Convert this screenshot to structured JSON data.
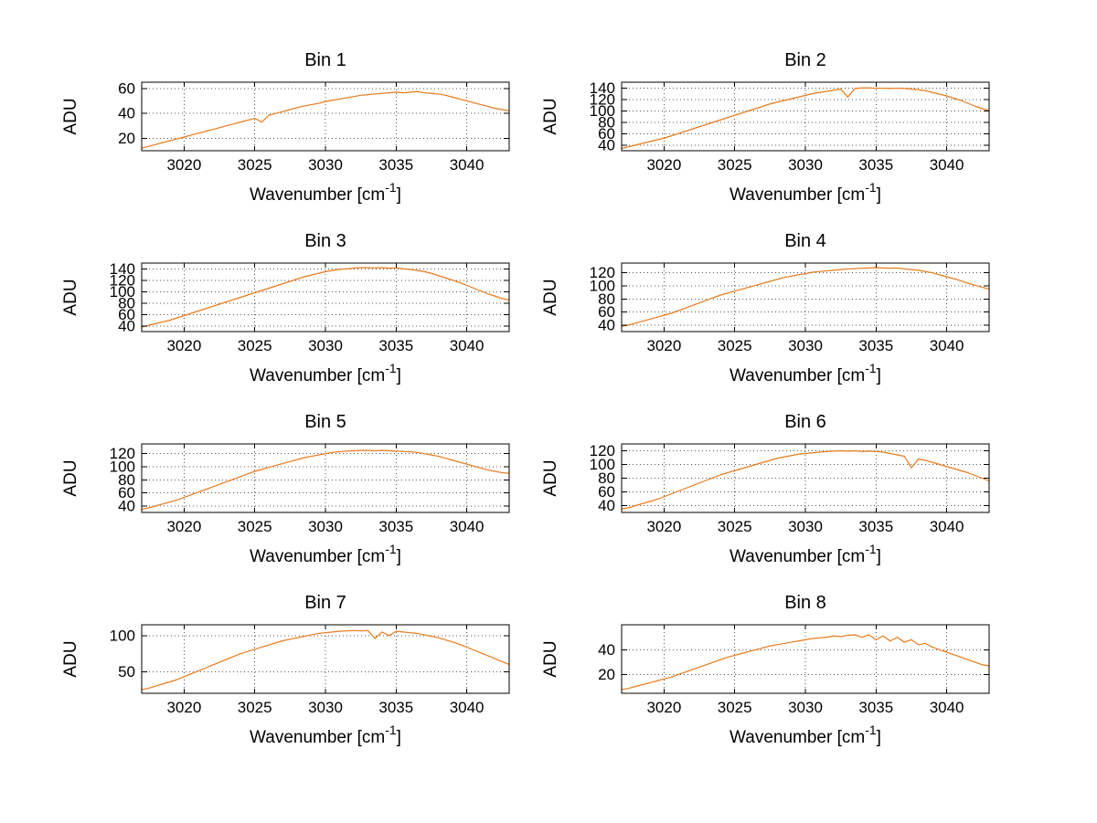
{
  "figure": {
    "background": "#ffffff",
    "grid_color": "#555555",
    "axis_color": "#000000",
    "rows": 4,
    "cols": 2
  },
  "labels": {
    "ylabel": "ADU",
    "xlabel_base": "Wavenumber [cm",
    "xlabel_sup": "-1",
    "xlabel_end": "]"
  },
  "chart_data": [
    {
      "type": "line",
      "title": "Bin 1",
      "xlabel": "Wavenumber [cm^-1]",
      "ylabel": "ADU",
      "line_color": "#e87a1a",
      "grid": true,
      "legend": "none",
      "xlim": [
        3017,
        3043
      ],
      "ylim": [
        10,
        65
      ],
      "x_ticks": [
        3020,
        3025,
        3030,
        3035,
        3040
      ],
      "y_ticks": [
        20,
        40,
        60
      ],
      "x_start": 3017,
      "x_step": 0.5,
      "values": [
        12,
        13.5,
        15,
        16.5,
        18,
        19.5,
        21,
        22.5,
        24,
        25.5,
        27,
        28.5,
        30,
        31.5,
        33,
        34.5,
        36,
        33,
        38.5,
        40,
        41.5,
        43,
        44.5,
        46,
        47,
        48,
        49.5,
        50.5,
        51.5,
        52.5,
        53.5,
        54.5,
        55,
        55.5,
        56,
        56.5,
        57,
        56.5,
        57,
        57.5,
        56.5,
        56,
        55.5,
        54.5,
        53,
        51.5,
        50,
        48.5,
        47,
        45.5,
        44,
        43,
        42
      ]
    },
    {
      "type": "line",
      "title": "Bin 2",
      "xlabel": "Wavenumber [cm^-1]",
      "ylabel": "ADU",
      "line_color": "#e87a1a",
      "grid": true,
      "legend": "none",
      "xlim": [
        3017,
        3043
      ],
      "ylim": [
        30,
        150
      ],
      "x_ticks": [
        3020,
        3025,
        3030,
        3035,
        3040
      ],
      "y_ticks": [
        40,
        60,
        80,
        100,
        120,
        140
      ],
      "x_start": 3017,
      "x_step": 0.5,
      "values": [
        34,
        37,
        40,
        43,
        46,
        49,
        52,
        56,
        60,
        64,
        68,
        72,
        76,
        80,
        84,
        88,
        92,
        96,
        100,
        104,
        108,
        112,
        115,
        118,
        121,
        124,
        127,
        130,
        132,
        134,
        136,
        138,
        124,
        139,
        140,
        140,
        139.5,
        139.5,
        139,
        139.5,
        139,
        138,
        137,
        135,
        132,
        129,
        126,
        122,
        118,
        113,
        108,
        104,
        100
      ]
    },
    {
      "type": "line",
      "title": "Bin 3",
      "xlabel": "Wavenumber [cm^-1]",
      "ylabel": "ADU",
      "line_color": "#e87a1a",
      "grid": true,
      "legend": "none",
      "xlim": [
        3017,
        3043
      ],
      "ylim": [
        30,
        150
      ],
      "x_ticks": [
        3020,
        3025,
        3030,
        3035,
        3040
      ],
      "y_ticks": [
        40,
        60,
        80,
        100,
        120,
        140
      ],
      "x_start": 3017,
      "x_step": 0.5,
      "values": [
        38,
        41,
        44,
        47,
        50,
        54,
        58,
        62,
        66,
        70,
        74,
        78,
        82,
        86,
        90,
        94,
        98,
        102,
        106,
        110,
        114,
        118,
        122,
        126,
        129,
        132,
        135,
        137,
        139,
        140,
        141,
        142,
        142,
        141.5,
        142,
        141,
        141.5,
        140,
        139,
        137,
        135,
        132,
        128,
        124,
        120,
        116,
        111,
        106,
        101,
        96,
        92,
        88,
        85
      ]
    },
    {
      "type": "line",
      "title": "Bin 4",
      "xlabel": "Wavenumber [cm^-1]",
      "ylabel": "ADU",
      "line_color": "#e87a1a",
      "grid": true,
      "legend": "none",
      "xlim": [
        3017,
        3043
      ],
      "ylim": [
        30,
        135
      ],
      "x_ticks": [
        3020,
        3025,
        3030,
        3035,
        3040
      ],
      "y_ticks": [
        40,
        60,
        80,
        100,
        120
      ],
      "x_start": 3017,
      "x_step": 0.5,
      "values": [
        38,
        40,
        43,
        46,
        49,
        52,
        55,
        58,
        62,
        66,
        70,
        74,
        78,
        82,
        86,
        89,
        92,
        95,
        98,
        101,
        104,
        107,
        110,
        113,
        115,
        117,
        119,
        121,
        122,
        123,
        124,
        125,
        126,
        126.5,
        127,
        127.5,
        128,
        127.5,
        127,
        127.5,
        126,
        125,
        124,
        122,
        120,
        117,
        114,
        111,
        108,
        104,
        101,
        98,
        95
      ]
    },
    {
      "type": "line",
      "title": "Bin 5",
      "xlabel": "Wavenumber [cm^-1]",
      "ylabel": "ADU",
      "line_color": "#e87a1a",
      "grid": true,
      "legend": "none",
      "xlim": [
        3017,
        3043
      ],
      "ylim": [
        30,
        135
      ],
      "x_ticks": [
        3020,
        3025,
        3030,
        3035,
        3040
      ],
      "y_ticks": [
        40,
        60,
        80,
        100,
        120
      ],
      "x_start": 3017,
      "x_step": 0.5,
      "values": [
        35,
        37,
        40,
        43,
        46,
        49,
        53,
        57,
        61,
        65,
        69,
        73,
        77,
        81,
        85,
        89,
        93,
        96,
        99,
        102,
        105,
        108,
        111,
        114,
        116,
        118,
        120,
        122,
        123,
        124,
        124.5,
        125,
        125,
        124.5,
        125,
        124.5,
        124,
        123.5,
        123,
        122,
        120,
        118,
        116,
        113,
        110,
        107,
        104,
        101,
        98,
        95,
        93,
        91,
        90
      ]
    },
    {
      "type": "line",
      "title": "Bin 6",
      "xlabel": "Wavenumber [cm^-1]",
      "ylabel": "ADU",
      "line_color": "#e87a1a",
      "grid": true,
      "legend": "none",
      "xlim": [
        3017,
        3043
      ],
      "ylim": [
        30,
        130
      ],
      "x_ticks": [
        3020,
        3025,
        3030,
        3035,
        3040
      ],
      "y_ticks": [
        40,
        60,
        80,
        100,
        120
      ],
      "x_start": 3017,
      "x_step": 0.5,
      "values": [
        35,
        37,
        40,
        43,
        46,
        49,
        53,
        57,
        61,
        65,
        69,
        73,
        77,
        81,
        85,
        88,
        91,
        94,
        97,
        100,
        103,
        106,
        109,
        111,
        113,
        115,
        116,
        117,
        118,
        119,
        119.5,
        120,
        119.5,
        120,
        119,
        119.5,
        119,
        118,
        116,
        114,
        112,
        95,
        108,
        106,
        103,
        100,
        97,
        94,
        91,
        88,
        84,
        80,
        76
      ]
    },
    {
      "type": "line",
      "title": "Bin 7",
      "xlabel": "Wavenumber [cm^-1]",
      "ylabel": "ADU",
      "line_color": "#e87a1a",
      "grid": true,
      "legend": "none",
      "xlim": [
        3017,
        3043
      ],
      "ylim": [
        20,
        115
      ],
      "x_ticks": [
        3020,
        3025,
        3030,
        3035,
        3040
      ],
      "y_ticks": [
        50,
        100
      ],
      "x_start": 3017,
      "x_step": 0.5,
      "values": [
        25,
        27,
        30,
        33,
        36,
        39,
        43,
        47,
        51,
        55,
        59,
        63,
        67,
        71,
        75,
        78,
        81,
        84,
        87,
        90,
        93,
        95,
        97,
        99,
        101,
        103,
        104,
        105,
        106,
        106.5,
        107,
        106.5,
        107,
        96,
        105,
        100,
        106,
        105,
        104,
        103,
        101,
        99,
        97,
        94,
        91,
        88,
        84,
        80,
        76,
        72,
        68,
        64,
        60
      ]
    },
    {
      "type": "line",
      "title": "Bin 8",
      "xlabel": "Wavenumber [cm^-1]",
      "ylabel": "ADU",
      "line_color": "#e87a1a",
      "grid": true,
      "legend": "none",
      "xlim": [
        3017,
        3043
      ],
      "ylim": [
        5,
        60
      ],
      "x_ticks": [
        3020,
        3025,
        3030,
        3035,
        3040
      ],
      "y_ticks": [
        20,
        40
      ],
      "x_start": 3017,
      "x_step": 0.5,
      "values": [
        8,
        9,
        10.5,
        12,
        13.5,
        15,
        16.5,
        18,
        20,
        22,
        24,
        26,
        28,
        30,
        32,
        34,
        35.5,
        37,
        38.5,
        40,
        41.5,
        43,
        44,
        45,
        46,
        47,
        48,
        49,
        49.5,
        50,
        51,
        50.5,
        51.5,
        52,
        50,
        52,
        48,
        51,
        47,
        50,
        46,
        48,
        44,
        45,
        42,
        40,
        38,
        36,
        34,
        32,
        30,
        28,
        27
      ]
    }
  ]
}
